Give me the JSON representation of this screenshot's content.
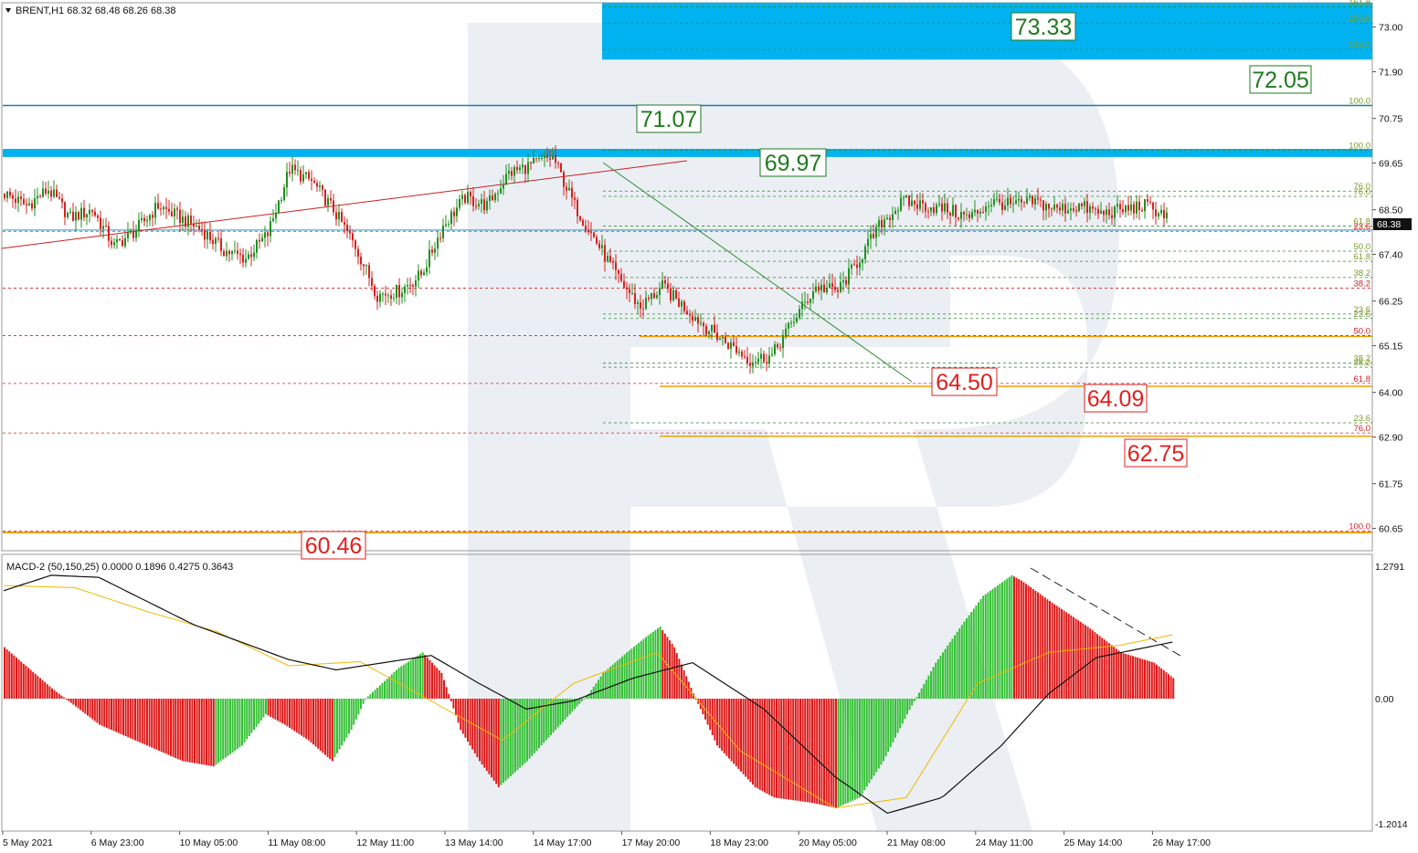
{
  "chart_data": [
    {
      "type": "candlestick",
      "symbol_header": "BRENT,H1  68.32 68.48 68.26 68.38",
      "current_price": "68.38",
      "y_ticks": [
        "73.00",
        "71.90",
        "70.75",
        "69.65",
        "68.50",
        "67.40",
        "66.25",
        "65.15",
        "64.00",
        "62.90",
        "61.75",
        "60.65"
      ],
      "x_ticks": [
        "5 May 2021",
        "6 May 23:00",
        "10 May 05:00",
        "11 May 08:00",
        "12 May 11:00",
        "13 May 14:00",
        "14 May 17:00",
        "17 May 20:00",
        "18 May 23:00",
        "20 May 05:00",
        "21 May 08:00",
        "24 May 11:00",
        "25 May 14:00",
        "26 May 17:00"
      ],
      "ylim": [
        60.1,
        73.6
      ],
      "price_path": [
        [
          0,
          68.9
        ],
        [
          8,
          68.6
        ],
        [
          16,
          69.0
        ],
        [
          24,
          68.3
        ],
        [
          32,
          68.5
        ],
        [
          40,
          67.6
        ],
        [
          48,
          68.0
        ],
        [
          56,
          68.6
        ],
        [
          64,
          68.3
        ],
        [
          72,
          68.0
        ],
        [
          80,
          67.5
        ],
        [
          88,
          67.3
        ],
        [
          96,
          67.9
        ],
        [
          104,
          69.5
        ],
        [
          112,
          69.2
        ],
        [
          120,
          68.5
        ],
        [
          128,
          67.6
        ],
        [
          136,
          66.4
        ],
        [
          144,
          66.5
        ],
        [
          152,
          66.9
        ],
        [
          160,
          68.1
        ],
        [
          168,
          68.8
        ],
        [
          176,
          68.6
        ],
        [
          184,
          69.4
        ],
        [
          192,
          69.6
        ],
        [
          200,
          69.8
        ],
        [
          208,
          68.6
        ],
        [
          216,
          67.7
        ],
        [
          224,
          66.8
        ],
        [
          232,
          66.1
        ],
        [
          240,
          66.6
        ],
        [
          248,
          66.1
        ],
        [
          256,
          65.6
        ],
        [
          264,
          65.2
        ],
        [
          272,
          64.8
        ],
        [
          280,
          64.9
        ],
        [
          288,
          65.8
        ],
        [
          296,
          66.6
        ],
        [
          304,
          66.5
        ],
        [
          312,
          67.3
        ],
        [
          320,
          68.2
        ],
        [
          328,
          68.7
        ],
        [
          336,
          68.6
        ],
        [
          344,
          68.5
        ],
        [
          352,
          68.3
        ],
        [
          360,
          68.7
        ],
        [
          368,
          68.6
        ],
        [
          376,
          68.7
        ],
        [
          384,
          68.5
        ],
        [
          392,
          68.6
        ],
        [
          400,
          68.4
        ],
        [
          408,
          68.5
        ],
        [
          416,
          68.6
        ],
        [
          424,
          68.38
        ]
      ],
      "fib_levels": [
        {
          "price": 73.5,
          "label": "161.8",
          "color": "#2e8b2e"
        },
        {
          "price": 73.1,
          "label": "150.0",
          "color": "#2e8b2e"
        },
        {
          "price": 72.45,
          "label": "138.2",
          "color": "#2e8b2e"
        },
        {
          "price": 71.07,
          "label": "100.0",
          "color": "#2e8b2e"
        },
        {
          "price": 69.97,
          "label": "100.0",
          "color": "#2e8b2e"
        },
        {
          "price": 68.96,
          "label": "76.0",
          "color": "#2e8b2e"
        },
        {
          "price": 68.83,
          "label": "76.0",
          "color": "#2e8b2e"
        },
        {
          "price": 68.1,
          "label": "61.8",
          "color": "#2e8b2e"
        },
        {
          "price": 67.97,
          "label": "23.6",
          "color": "#d62020"
        },
        {
          "price": 67.48,
          "label": "50.0",
          "color": "#2e8b2e"
        },
        {
          "price": 67.23,
          "label": "61.8",
          "color": "#2e8b2e"
        },
        {
          "price": 66.83,
          "label": "38.2",
          "color": "#2e8b2e"
        },
        {
          "price": 66.57,
          "label": "38.2",
          "color": "#d62020"
        },
        {
          "price": 65.93,
          "label": "23.6",
          "color": "#2e8b2e"
        },
        {
          "price": 65.82,
          "label": "23.6",
          "color": "#2e8b2e"
        },
        {
          "price": 65.4,
          "label": "50.0",
          "color": "#d62020"
        },
        {
          "price": 64.72,
          "label": "38.2",
          "color": "#2e8b2e"
        },
        {
          "price": 64.62,
          "label": "38.2",
          "color": "#2e8b2e"
        },
        {
          "price": 64.22,
          "label": "61.8",
          "color": "#d62020"
        },
        {
          "price": 63.25,
          "label": "23.6",
          "color": "#2e8b2e"
        },
        {
          "price": 63.0,
          "label": "76.0",
          "color": "#d62020"
        },
        {
          "price": 60.58,
          "label": "100.0",
          "color": "#d62020"
        }
      ],
      "target_labels": [
        {
          "text": "73.33",
          "color": "#1f7a1f"
        },
        {
          "text": "72.05",
          "color": "#1f7a1f"
        },
        {
          "text": "71.07",
          "color": "#1f7a1f"
        },
        {
          "text": "69.97",
          "color": "#1f7a1f"
        },
        {
          "text": "64.50",
          "color": "#e02020"
        },
        {
          "text": "64.09",
          "color": "#e02020"
        },
        {
          "text": "62.75",
          "color": "#e02020"
        },
        {
          "text": "60.46",
          "color": "#e02020"
        }
      ],
      "colors": {
        "bull": "#2ca02c",
        "bear": "#d62020",
        "target_zone": "#00b3f0",
        "watermark": "#e9edf3"
      }
    },
    {
      "type": "bar",
      "indicator": "MACD-2 (50,150,25) 0.0000 0.1896 0.4275 0.3643",
      "y_ticks": [
        "1.2791",
        "0.00",
        "-1.2014"
      ],
      "ylim": [
        -1.2014,
        1.2791
      ],
      "hist_path": [
        [
          0,
          0.5
        ],
        [
          20,
          0.1
        ],
        [
          40,
          -0.25
        ],
        [
          60,
          -0.45
        ],
        [
          75,
          -0.6
        ],
        [
          88,
          -0.65
        ],
        [
          100,
          -0.45
        ],
        [
          110,
          -0.15
        ],
        [
          118,
          -0.25
        ],
        [
          128,
          -0.4
        ],
        [
          138,
          -0.6
        ],
        [
          146,
          -0.3
        ],
        [
          152,
          0.0
        ],
        [
          166,
          0.3
        ],
        [
          176,
          0.45
        ],
        [
          184,
          0.25
        ],
        [
          192,
          -0.3
        ],
        [
          200,
          -0.6
        ],
        [
          208,
          -0.85
        ],
        [
          220,
          -0.6
        ],
        [
          236,
          -0.2
        ],
        [
          246,
          0.05
        ],
        [
          252,
          0.25
        ],
        [
          262,
          0.45
        ],
        [
          270,
          0.6
        ],
        [
          276,
          0.7
        ],
        [
          282,
          0.5
        ],
        [
          290,
          0.05
        ],
        [
          300,
          -0.45
        ],
        [
          316,
          -0.85
        ],
        [
          324,
          -0.95
        ],
        [
          340,
          -1.0
        ],
        [
          350,
          -1.05
        ],
        [
          360,
          -0.95
        ],
        [
          370,
          -0.6
        ],
        [
          380,
          -0.15
        ],
        [
          392,
          0.35
        ],
        [
          404,
          0.75
        ],
        [
          412,
          1.0
        ],
        [
          424,
          1.2
        ],
        [
          428,
          1.15
        ],
        [
          440,
          0.95
        ],
        [
          456,
          0.7
        ],
        [
          470,
          0.45
        ],
        [
          484,
          0.35
        ],
        [
          492,
          0.2
        ]
      ],
      "signal_path": [
        [
          0,
          1.1
        ],
        [
          30,
          1.08
        ],
        [
          60,
          0.85
        ],
        [
          90,
          0.65
        ],
        [
          120,
          0.32
        ],
        [
          150,
          0.36
        ],
        [
          190,
          -0.15
        ],
        [
          210,
          -0.4
        ],
        [
          240,
          0.15
        ],
        [
          275,
          0.45
        ],
        [
          310,
          -0.5
        ],
        [
          350,
          -1.05
        ],
        [
          380,
          -0.95
        ],
        [
          410,
          0.15
        ],
        [
          440,
          0.45
        ],
        [
          470,
          0.52
        ],
        [
          492,
          0.62
        ]
      ],
      "macd_path": [
        [
          0,
          1.05
        ],
        [
          20,
          1.2
        ],
        [
          40,
          1.18
        ],
        [
          60,
          0.95
        ],
        [
          80,
          0.72
        ],
        [
          100,
          0.55
        ],
        [
          120,
          0.38
        ],
        [
          140,
          0.28
        ],
        [
          160,
          0.35
        ],
        [
          180,
          0.42
        ],
        [
          200,
          0.15
        ],
        [
          220,
          -0.1
        ],
        [
          240,
          -0.02
        ],
        [
          265,
          0.2
        ],
        [
          290,
          0.35
        ],
        [
          320,
          -0.1
        ],
        [
          350,
          -0.75
        ],
        [
          372,
          -1.1
        ],
        [
          395,
          -0.95
        ],
        [
          420,
          -0.45
        ],
        [
          440,
          0.05
        ],
        [
          460,
          0.4
        ],
        [
          492,
          0.55
        ]
      ],
      "colors": {
        "bull": "#35c035",
        "bear": "#e01818",
        "signal": "#f0b800",
        "macd": "#111111"
      }
    }
  ]
}
